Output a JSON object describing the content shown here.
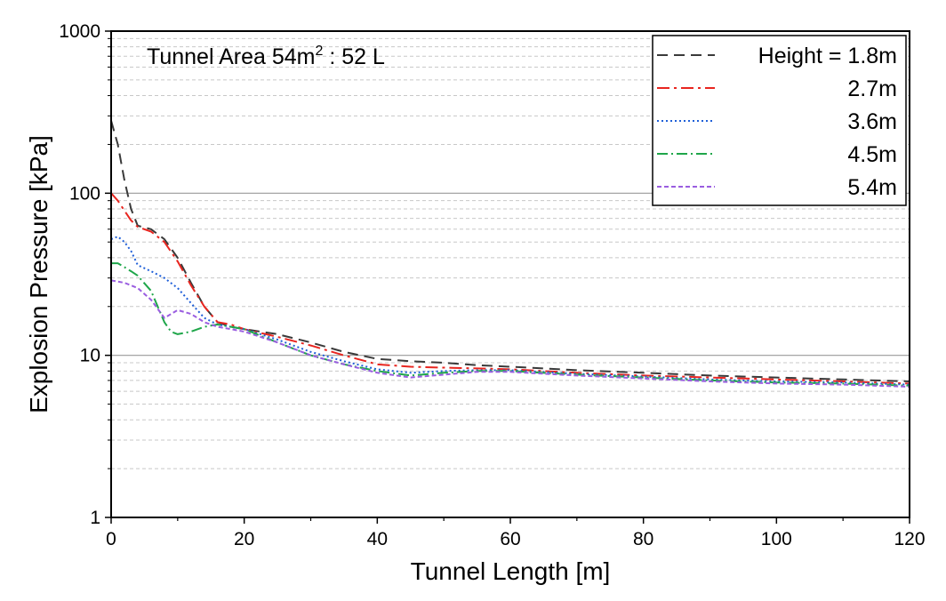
{
  "chart_data": {
    "type": "line",
    "annotation": {
      "prefix": "Tunnel Area 54m",
      "superscript": "2",
      "suffix": " : 52 L"
    },
    "xlabel": "Tunnel Length [m]",
    "ylabel": "Explosion Pressure [kPa]",
    "xlim": [
      0,
      120
    ],
    "ylim": [
      1,
      1000
    ],
    "yscale": "log",
    "xticks": [
      0,
      20,
      40,
      60,
      80,
      100,
      120
    ],
    "xtick_labels": [
      "0",
      "20",
      "40",
      "60",
      "80",
      "100",
      "120"
    ],
    "yticks": [
      1,
      10,
      100,
      1000
    ],
    "ytick_labels": [
      "1",
      "10",
      "100",
      "1000"
    ],
    "grid": "minor horizontal dashed; major horizontal solid",
    "legend_position": "top-right",
    "series": [
      {
        "name": "Height = 1.8m",
        "color": "#3a3a3a",
        "dash": "12,7",
        "x": [
          0,
          1,
          2,
          3,
          4,
          6,
          8,
          10,
          12,
          14,
          16,
          18,
          20,
          25,
          30,
          35,
          40,
          45,
          50,
          55,
          60,
          70,
          80,
          90,
          100,
          110,
          120
        ],
        "y": [
          280,
          200,
          120,
          80,
          63,
          60,
          52,
          40,
          28,
          20,
          16,
          15,
          14.5,
          13.5,
          12,
          10.5,
          9.5,
          9.2,
          9,
          8.7,
          8.5,
          8.1,
          7.8,
          7.5,
          7.3,
          7.1,
          6.9
        ]
      },
      {
        "name": "2.7m",
        "color": "#e8251f",
        "dash": "14,5,3,5",
        "x": [
          0,
          1,
          2,
          3,
          4,
          6,
          8,
          10,
          12,
          14,
          16,
          18,
          20,
          25,
          30,
          35,
          40,
          45,
          50,
          55,
          60,
          70,
          80,
          90,
          100,
          110,
          120
        ],
        "y": [
          100,
          90,
          78,
          68,
          62,
          58,
          50,
          38,
          27,
          20,
          16,
          15.5,
          14.5,
          13,
          11.5,
          10,
          8.8,
          8.5,
          8.4,
          8.3,
          8.2,
          7.8,
          7.5,
          7.3,
          7.1,
          6.9,
          6.7
        ]
      },
      {
        "name": "3.6m",
        "color": "#1f5fd8",
        "dash": "2,3",
        "x": [
          0,
          1,
          2,
          3,
          4,
          6,
          8,
          10,
          12,
          14,
          16,
          18,
          20,
          25,
          30,
          35,
          40,
          45,
          50,
          55,
          60,
          70,
          80,
          90,
          100,
          110,
          120
        ],
        "y": [
          52,
          54,
          50,
          44,
          36,
          33,
          30,
          26,
          21,
          17,
          15.5,
          15,
          14.5,
          12.5,
          10.5,
          9.2,
          8.2,
          7.8,
          8,
          8.1,
          8.1,
          7.7,
          7.4,
          7.1,
          6.9,
          6.8,
          6.6
        ]
      },
      {
        "name": "4.5m",
        "color": "#1fa64a",
        "dash": "12,4,2,4",
        "x": [
          0,
          1,
          2,
          3,
          4,
          6,
          7,
          8,
          9,
          10,
          12,
          14,
          16,
          18,
          20,
          25,
          30,
          35,
          40,
          45,
          50,
          55,
          60,
          70,
          80,
          90,
          100,
          110,
          120
        ],
        "y": [
          37,
          37,
          35,
          33,
          31,
          25,
          20,
          16,
          14,
          13.5,
          14,
          15,
          15.5,
          15,
          14.5,
          12,
          10,
          8.8,
          8,
          7.5,
          7.8,
          8,
          8,
          7.6,
          7.3,
          7,
          6.8,
          6.7,
          6.5
        ]
      },
      {
        "name": "5.4m",
        "color": "#9a5de0",
        "dash": "5,3",
        "x": [
          0,
          1,
          2,
          3,
          4,
          6,
          8,
          10,
          12,
          14,
          16,
          18,
          20,
          25,
          30,
          35,
          40,
          45,
          50,
          55,
          60,
          70,
          80,
          90,
          100,
          110,
          120
        ],
        "y": [
          29,
          28.5,
          28,
          27,
          26,
          22,
          17,
          19,
          18,
          16,
          15,
          14.5,
          14,
          12,
          10,
          8.8,
          7.8,
          7.3,
          7.6,
          7.9,
          7.9,
          7.5,
          7.2,
          6.9,
          6.7,
          6.6,
          6.4
        ]
      }
    ]
  }
}
